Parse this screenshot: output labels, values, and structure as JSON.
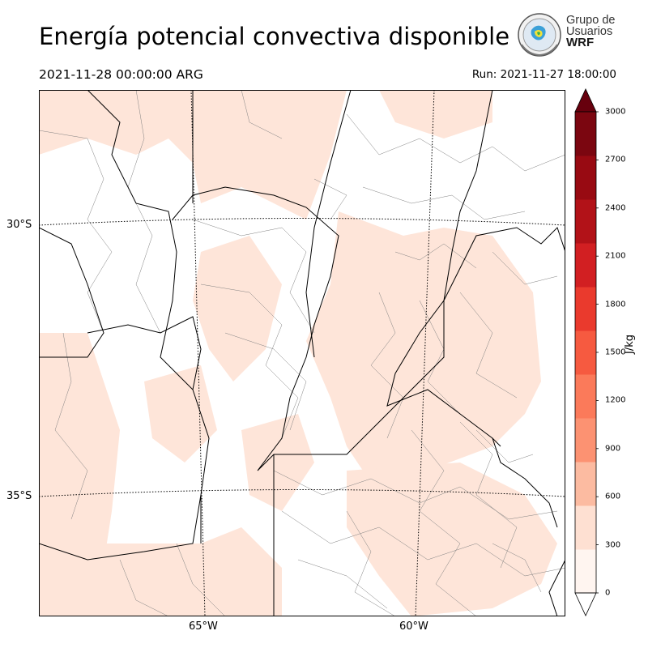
{
  "title": "Energía potencial convectiva disponible",
  "valid_time": "2021-11-28 00:00:00 ARG",
  "run_time": "Run: 2021-11-27 18:00:00",
  "logo": {
    "line1": "Grupo de",
    "line2": "Usuarios",
    "line3": "WRF"
  },
  "map": {
    "lat_labels": [
      "30°S",
      "35°S"
    ],
    "lon_labels": [
      "65°W",
      "60°W"
    ],
    "shading_color": "#fee5d9",
    "border_color": "#000000",
    "department_color": "#808080"
  },
  "colorbar": {
    "unit": "J/kg",
    "ticks": [
      "0",
      "300",
      "600",
      "900",
      "1200",
      "1500",
      "1800",
      "2100",
      "2400",
      "2700",
      "3000"
    ],
    "colors": [
      "#fff5f0",
      "#fee0d2",
      "#fcbba1",
      "#fc9272",
      "#fb7a5a",
      "#f65a40",
      "#ea3a2d",
      "#d21f22",
      "#b21218",
      "#980a12",
      "#7b0610"
    ],
    "extend_low_color": "#ffffff",
    "extend_high_color": "#67000d"
  }
}
